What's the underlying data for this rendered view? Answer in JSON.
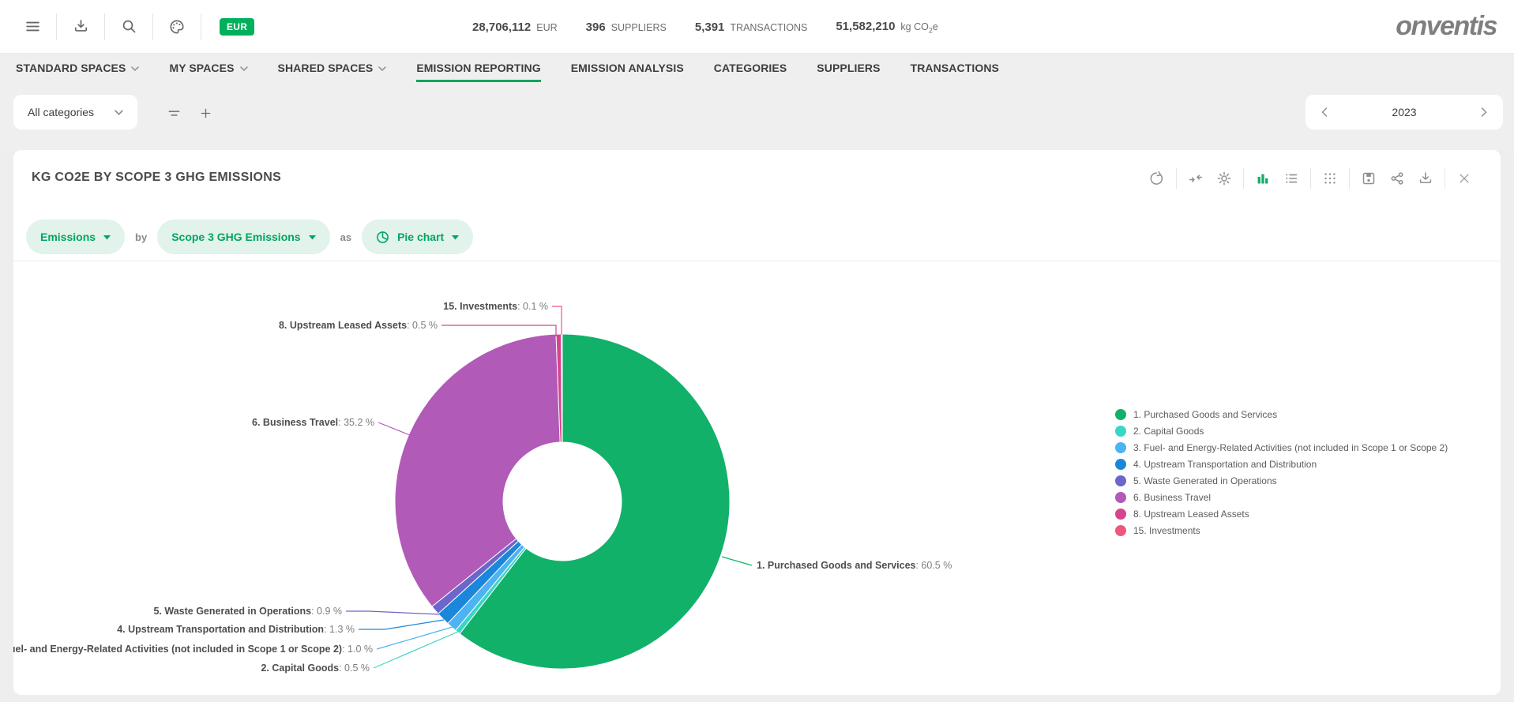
{
  "header": {
    "currency_badge": "EUR",
    "icons": [
      "menu",
      "download",
      "search",
      "theme-palette"
    ],
    "stats": [
      {
        "value": "28,706,112",
        "label": "EUR"
      },
      {
        "value": "396",
        "label": "SUPPLIERS"
      },
      {
        "value": "5,391",
        "label": "TRANSACTIONS"
      },
      {
        "value": "51,582,210",
        "label_pre": "kg CO",
        "label_sub": "2",
        "label_post": "e"
      }
    ],
    "logo_text": "onventis"
  },
  "nav": {
    "tabs": [
      {
        "label": "STANDARD SPACES",
        "has_dropdown": true,
        "active": false
      },
      {
        "label": "MY SPACES",
        "has_dropdown": true,
        "active": false
      },
      {
        "label": "SHARED SPACES",
        "has_dropdown": true,
        "active": false
      },
      {
        "label": "EMISSION REPORTING",
        "has_dropdown": false,
        "active": true
      },
      {
        "label": "EMISSION ANALYSIS",
        "has_dropdown": false,
        "active": false
      },
      {
        "label": "CATEGORIES",
        "has_dropdown": false,
        "active": false
      },
      {
        "label": "SUPPLIERS",
        "has_dropdown": false,
        "active": false
      },
      {
        "label": "TRANSACTIONS",
        "has_dropdown": false,
        "active": false
      }
    ]
  },
  "filter_bar": {
    "category_select_value": "All categories",
    "year_value": "2023"
  },
  "card": {
    "title": "KG CO2E BY SCOPE 3 GHG EMISSIONS",
    "query_builder": {
      "measure": "Emissions",
      "by_label": "by",
      "dimension": "Scope 3 GHG Emissions",
      "as_label": "as",
      "chart_type": "Pie chart"
    },
    "toolbar_icons": [
      "refresh",
      "collapse",
      "settings",
      "bar-chart",
      "list",
      "grid",
      "save",
      "share",
      "download",
      "close"
    ]
  },
  "chart_data": {
    "type": "pie",
    "donut": true,
    "title": "KG CO2E BY SCOPE 3 GHG EMISSIONS",
    "value_unit": "%",
    "direction": "clockwise",
    "start_angle_deg": 0,
    "legend_position": "right",
    "slices": [
      {
        "label": "1. Purchased Goods and Services",
        "value": 60.5,
        "color": "#12b16a"
      },
      {
        "label": "2. Capital Goods",
        "value": 0.5,
        "color": "#3ad6c5"
      },
      {
        "label": "3. Fuel- and Energy-Related Activities (not included in Scope 1 or Scope 2)",
        "value": 1.0,
        "color": "#4db3f2"
      },
      {
        "label": "4. Upstream Transportation and Distribution",
        "value": 1.3,
        "color": "#1b87db"
      },
      {
        "label": "5. Waste Generated in Operations",
        "value": 0.9,
        "color": "#6c66cb"
      },
      {
        "label": "6. Business Travel",
        "value": 35.2,
        "color": "#b15ab8"
      },
      {
        "label": "8. Upstream Leased Assets",
        "value": 0.5,
        "color": "#d6448e"
      },
      {
        "label": "15. Investments",
        "value": 0.1,
        "color": "#f05580"
      }
    ]
  }
}
